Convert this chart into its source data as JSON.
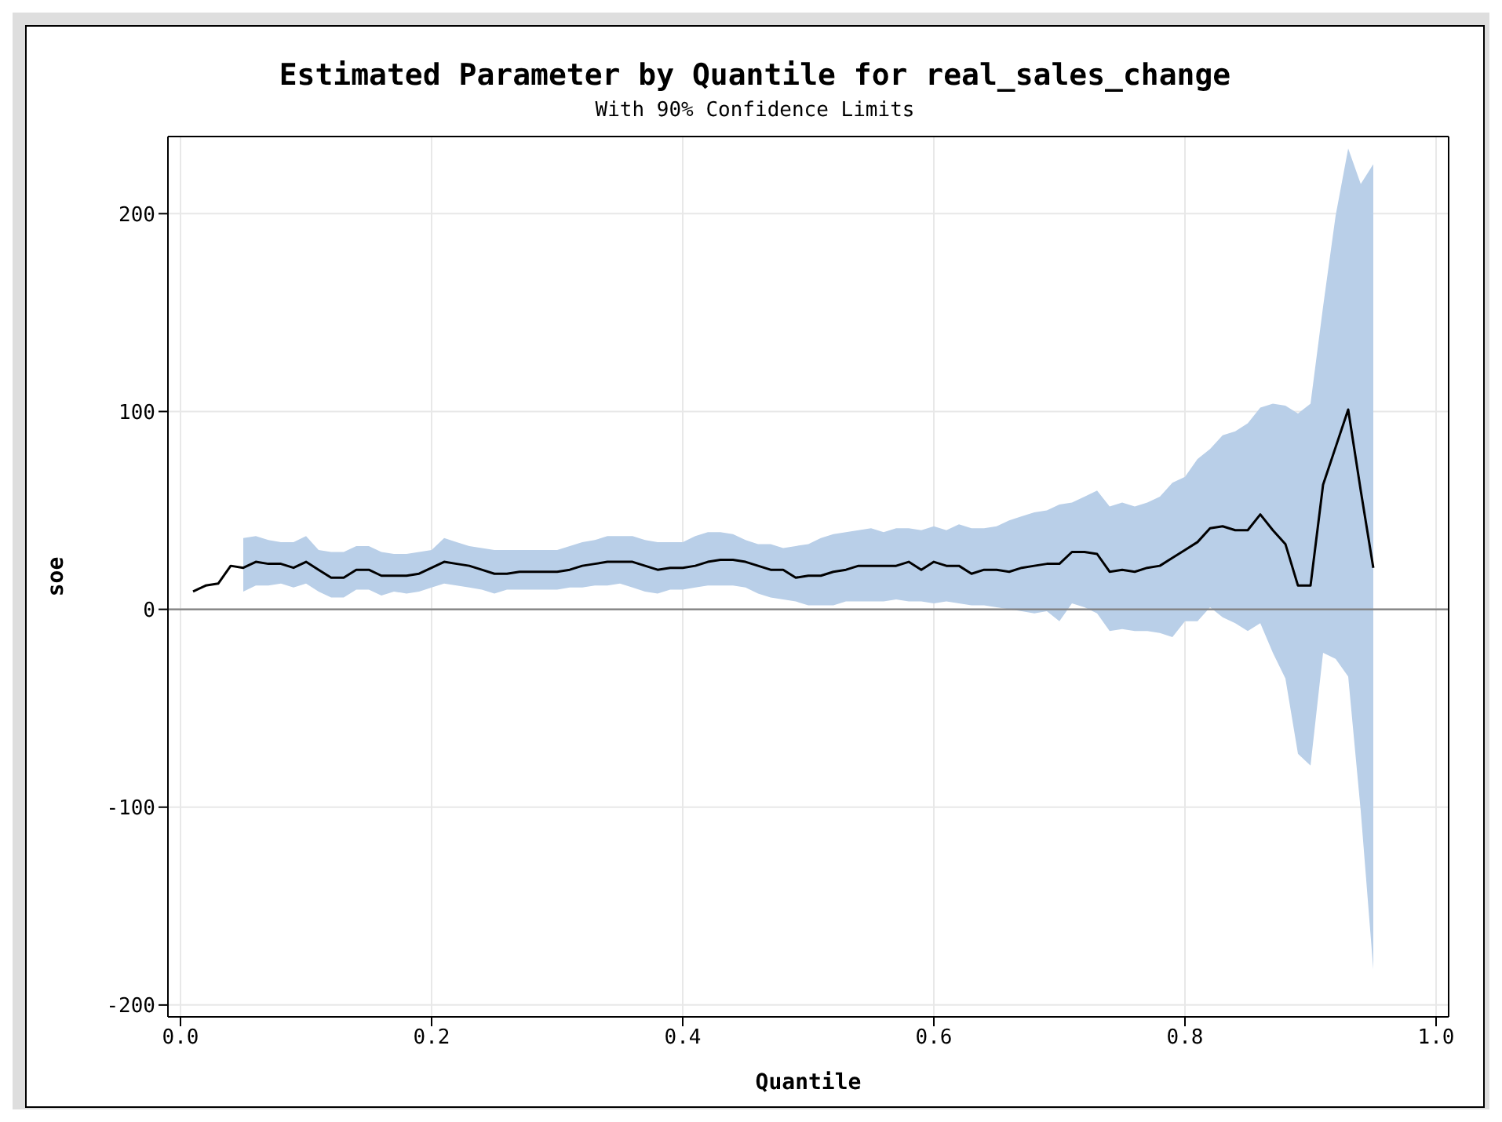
{
  "chart_data": {
    "type": "line",
    "title": "Estimated Parameter by Quantile for real_sales_change",
    "subtitle": "With 90% Confidence Limits",
    "xlabel": "Quantile",
    "ylabel": "soe",
    "x": [
      0.01,
      0.02,
      0.03,
      0.04,
      0.05,
      0.06,
      0.07,
      0.08,
      0.09,
      0.1,
      0.11,
      0.12,
      0.13,
      0.14,
      0.15,
      0.16,
      0.17,
      0.18,
      0.19,
      0.2,
      0.21,
      0.22,
      0.23,
      0.24,
      0.25,
      0.26,
      0.27,
      0.28,
      0.29,
      0.3,
      0.31,
      0.32,
      0.33,
      0.34,
      0.35,
      0.36,
      0.37,
      0.38,
      0.39,
      0.4,
      0.41,
      0.42,
      0.43,
      0.44,
      0.45,
      0.46,
      0.47,
      0.48,
      0.49,
      0.5,
      0.51,
      0.52,
      0.53,
      0.54,
      0.55,
      0.56,
      0.57,
      0.58,
      0.59,
      0.6,
      0.61,
      0.62,
      0.63,
      0.64,
      0.65,
      0.66,
      0.67,
      0.68,
      0.69,
      0.7,
      0.71,
      0.72,
      0.73,
      0.74,
      0.75,
      0.76,
      0.77,
      0.78,
      0.79,
      0.8,
      0.81,
      0.82,
      0.83,
      0.84,
      0.85,
      0.86,
      0.87,
      0.88,
      0.89,
      0.9,
      0.91,
      0.92,
      0.93,
      0.94,
      0.95
    ],
    "series": [
      {
        "color": "#000000",
        "values": [
          9,
          12,
          13,
          22,
          21,
          24,
          23,
          23,
          21,
          24,
          20,
          16,
          16,
          20,
          20,
          17,
          17,
          17,
          18,
          21,
          24,
          23,
          22,
          20,
          18,
          18,
          19,
          19,
          19,
          19,
          20,
          22,
          23,
          24,
          24,
          24,
          22,
          20,
          21,
          21,
          22,
          24,
          25,
          25,
          24,
          22,
          20,
          20,
          16,
          17,
          17,
          19,
          20,
          22,
          22,
          22,
          22,
          24,
          20,
          24,
          22,
          22,
          18,
          20,
          20,
          19,
          21,
          22,
          23,
          23,
          29,
          29,
          28,
          19,
          20,
          19,
          21,
          22,
          26,
          30,
          34,
          41,
          42,
          40,
          40,
          48,
          40,
          33,
          12,
          12,
          63,
          82,
          101,
          60,
          21
        ],
        "upper": [
          null,
          null,
          null,
          null,
          36,
          37,
          35,
          34,
          34,
          37,
          30,
          29,
          29,
          32,
          32,
          29,
          28,
          28,
          29,
          30,
          36,
          34,
          32,
          31,
          30,
          30,
          30,
          30,
          30,
          30,
          32,
          34,
          35,
          37,
          37,
          37,
          35,
          34,
          34,
          34,
          37,
          39,
          39,
          38,
          35,
          33,
          33,
          31,
          32,
          33,
          36,
          38,
          39,
          40,
          41,
          39,
          41,
          41,
          40,
          42,
          40,
          43,
          41,
          41,
          42,
          45,
          47,
          49,
          50,
          53,
          54,
          57,
          60,
          52,
          54,
          52,
          54,
          57,
          64,
          67,
          76,
          81,
          88,
          90,
          94,
          102,
          104,
          103,
          99,
          104,
          153,
          199,
          233,
          215,
          225
        ],
        "lower": [
          null,
          null,
          null,
          null,
          9,
          12,
          12,
          13,
          11,
          13,
          9,
          6,
          6,
          10,
          10,
          7,
          9,
          8,
          9,
          11,
          13,
          12,
          11,
          10,
          8,
          10,
          10,
          10,
          10,
          10,
          11,
          11,
          12,
          12,
          13,
          11,
          9,
          8,
          10,
          10,
          11,
          12,
          12,
          12,
          11,
          8,
          6,
          5,
          4,
          2,
          2,
          2,
          4,
          4,
          4,
          4,
          5,
          4,
          4,
          3,
          4,
          3,
          2,
          2,
          1,
          0,
          -1,
          -2,
          -1,
          -6,
          3,
          1,
          -2,
          -11,
          -10,
          -11,
          -11,
          -12,
          -14,
          -6,
          -6,
          1,
          -4,
          -7,
          -11,
          -7,
          -22,
          -35,
          -73,
          -79,
          -22,
          -25,
          -34,
          -102,
          -182
        ]
      }
    ],
    "xlim": [
      -0.01,
      1.01
    ],
    "xticks": [
      {
        "value": 0,
        "label": "0.0"
      },
      {
        "value": 0.2,
        "label": "0.2"
      },
      {
        "value": 0.4,
        "label": "0.4"
      },
      {
        "value": 0.6,
        "label": "0.6"
      },
      {
        "value": 0.8,
        "label": "0.8"
      },
      {
        "value": 1,
        "label": "1.0"
      }
    ],
    "ylim": [
      -206,
      239
    ],
    "yticks": [
      -200,
      -100,
      0,
      100,
      200
    ],
    "ref_lines": [
      {
        "axis": "y",
        "value": 0,
        "color": "#808080"
      }
    ],
    "grid": true,
    "marker": "none",
    "line_style": "solid"
  }
}
